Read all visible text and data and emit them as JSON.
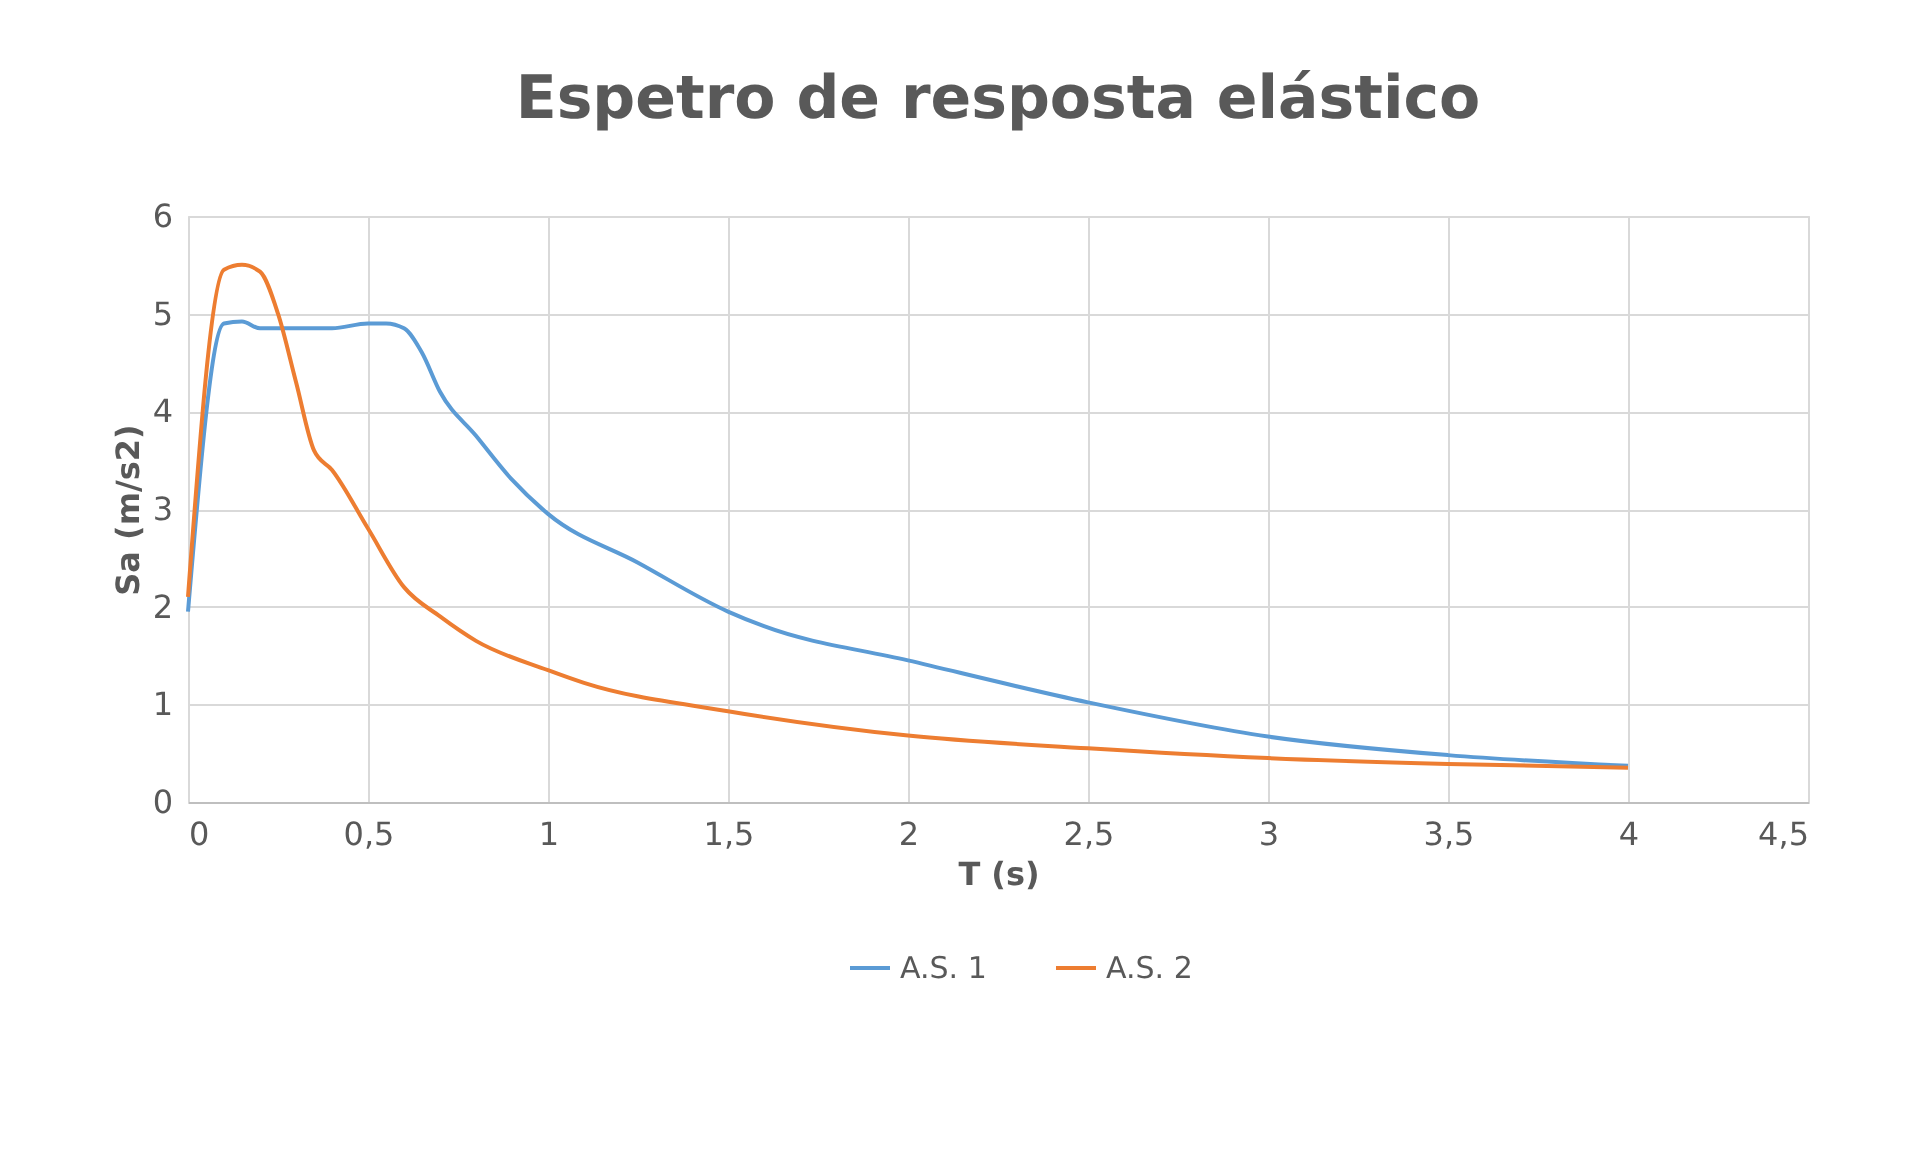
{
  "chart_data": {
    "type": "line",
    "title": "Espetro de resposta elástico",
    "xlabel": "T (s)",
    "ylabel": "Sa (m/s2)",
    "xlim": [
      0,
      4.5
    ],
    "xticks": [
      0,
      {
        "value": 0.5,
        "label": "0,5"
      },
      1,
      {
        "value": 1.5,
        "label": "1,5"
      },
      2,
      {
        "value": 2.5,
        "label": "2,5"
      },
      3,
      {
        "value": 3.5,
        "label": "3,5"
      },
      4,
      {
        "value": 4.5,
        "label": "4,5"
      }
    ],
    "ylim": [
      0,
      6
    ],
    "yticks": [
      0,
      1,
      2,
      3,
      4,
      5,
      6
    ],
    "grid": true,
    "legend": "bottom",
    "marker": "none",
    "line_style": "solid",
    "series": [
      {
        "name": "A.S. 1",
        "color": "#5b9bd5",
        "x": [
          0,
          0.1,
          0.15,
          0.2,
          0.3,
          0.4,
          0.5,
          0.55,
          0.6,
          0.65,
          0.7,
          0.8,
          0.9,
          1,
          1.25,
          1.5,
          1.6,
          2,
          2.5,
          3,
          3.5,
          4
        ],
        "values": [
          1.95,
          4.9,
          4.92,
          4.85,
          4.85,
          4.85,
          4.9,
          4.9,
          4.85,
          4.6,
          4.2,
          3.75,
          3.3,
          2.95,
          2.45,
          1.95,
          1.8,
          1.45,
          1.02,
          0.67,
          0.48,
          0.37
        ]
      },
      {
        "name": "A.S. 2",
        "color": "#ed7d31",
        "x": [
          0,
          0.1,
          0.15,
          0.2,
          0.25,
          0.3,
          0.35,
          0.4,
          0.5,
          0.6,
          0.7,
          0.8,
          1,
          1.1,
          1.5,
          2,
          2.5,
          3,
          3.5,
          4
        ],
        "values": [
          2.1,
          5.45,
          5.5,
          5.43,
          5.0,
          4.3,
          3.6,
          3.4,
          2.8,
          2.2,
          1.9,
          1.65,
          1.35,
          1.22,
          0.93,
          0.68,
          0.55,
          0.45,
          0.39,
          0.35
        ]
      }
    ]
  }
}
